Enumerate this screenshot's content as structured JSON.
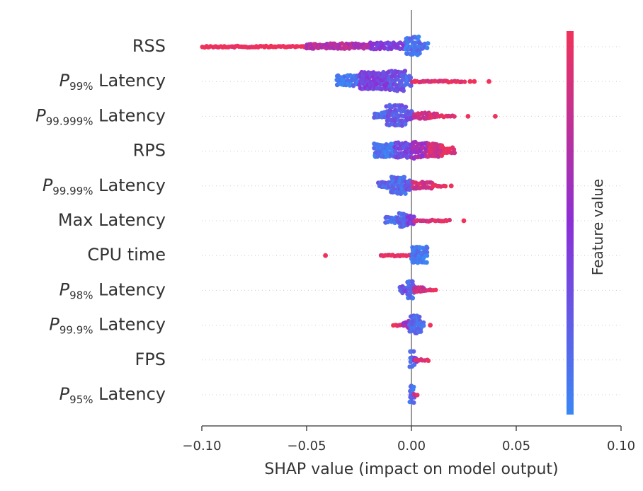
{
  "chart_data": {
    "type": "scatter",
    "subtype": "shap-beeswarm",
    "title": "",
    "xlabel": "SHAP value (impact on model output)",
    "xlim": [
      -0.1,
      0.1
    ],
    "xticks": [
      -0.1,
      -0.05,
      0.0,
      0.05,
      0.1
    ],
    "xtick_labels": [
      "−0.10",
      "−0.05",
      "0.00",
      "0.05",
      "0.10"
    ],
    "zero_line": 0.0,
    "colorbar": {
      "label": "Feature value",
      "low_color": "#3a86f5",
      "mid_color": "#8c2fd6",
      "high_color": "#f0325a",
      "low_label": "",
      "high_label": ""
    },
    "features": [
      {
        "base": "RSS",
        "sub": "",
        "suffix": "",
        "bands": [
          {
            "from": -0.1,
            "to": -0.05,
            "height": 0.8,
            "value": 1.0
          },
          {
            "from": -0.05,
            "to": -0.02,
            "height": 1.2,
            "value": 0.7
          },
          {
            "from": -0.02,
            "to": -0.003,
            "height": 1.5,
            "value": 0.45
          },
          {
            "from": -0.003,
            "to": 0.004,
            "height": 3.8,
            "value": 0.08
          },
          {
            "from": 0.004,
            "to": 0.008,
            "height": 1.5,
            "value": 0.12
          }
        ],
        "outliers": []
      },
      {
        "base": "P",
        "sub": "99%",
        "suffix": " Latency",
        "bands": [
          {
            "from": -0.036,
            "to": -0.025,
            "height": 2.4,
            "value": 0.1
          },
          {
            "from": -0.025,
            "to": -0.011,
            "height": 3.5,
            "value": 0.4
          },
          {
            "from": -0.011,
            "to": -0.003,
            "height": 4.2,
            "value": 0.3
          },
          {
            "from": -0.003,
            "to": 0.0,
            "height": 2.2,
            "value": 0.15
          },
          {
            "from": 0.0,
            "to": 0.012,
            "height": 1.0,
            "value": 0.9
          },
          {
            "from": 0.012,
            "to": 0.025,
            "height": 0.6,
            "value": 0.95
          }
        ],
        "outliers": [
          {
            "x": 0.028,
            "value": 1.0
          },
          {
            "x": 0.03,
            "value": 1.0
          },
          {
            "x": 0.037,
            "value": 1.0
          }
        ]
      },
      {
        "base": "P",
        "sub": "99.999%",
        "suffix": " Latency",
        "bands": [
          {
            "from": -0.018,
            "to": -0.012,
            "height": 1.6,
            "value": 0.15
          },
          {
            "from": -0.012,
            "to": -0.003,
            "height": 4.2,
            "value": 0.25
          },
          {
            "from": -0.003,
            "to": 0.001,
            "height": 2.0,
            "value": 0.3
          },
          {
            "from": 0.001,
            "to": 0.012,
            "height": 1.4,
            "value": 0.85
          },
          {
            "from": 0.012,
            "to": 0.02,
            "height": 0.8,
            "value": 0.95
          }
        ],
        "outliers": [
          {
            "x": 0.027,
            "value": 1.0
          },
          {
            "x": 0.04,
            "value": 1.0
          }
        ]
      },
      {
        "base": "RPS",
        "sub": "",
        "suffix": "",
        "bands": [
          {
            "from": -0.018,
            "to": -0.008,
            "height": 2.8,
            "value": 0.1
          },
          {
            "from": -0.008,
            "to": 0.0,
            "height": 3.2,
            "value": 0.35
          },
          {
            "from": 0.0,
            "to": 0.008,
            "height": 3.4,
            "value": 0.6
          },
          {
            "from": 0.008,
            "to": 0.015,
            "height": 2.8,
            "value": 0.85
          },
          {
            "from": 0.015,
            "to": 0.02,
            "height": 1.4,
            "value": 0.95
          }
        ],
        "outliers": []
      },
      {
        "base": "P",
        "sub": "99.99%",
        "suffix": " Latency",
        "bands": [
          {
            "from": -0.016,
            "to": -0.01,
            "height": 1.4,
            "value": 0.2
          },
          {
            "from": -0.01,
            "to": -0.003,
            "height": 3.6,
            "value": 0.15
          },
          {
            "from": -0.003,
            "to": 0.0,
            "height": 2.4,
            "value": 0.3
          },
          {
            "from": 0.0,
            "to": 0.01,
            "height": 1.6,
            "value": 0.85
          },
          {
            "from": 0.01,
            "to": 0.016,
            "height": 0.8,
            "value": 0.95
          }
        ],
        "outliers": [
          {
            "x": 0.019,
            "value": 1.0
          }
        ]
      },
      {
        "base": "Max Latency",
        "sub": "",
        "suffix": "",
        "bands": [
          {
            "from": -0.013,
            "to": -0.006,
            "height": 1.4,
            "value": 0.15
          },
          {
            "from": -0.006,
            "to": -0.002,
            "height": 2.8,
            "value": 0.2
          },
          {
            "from": -0.002,
            "to": 0.001,
            "height": 2.0,
            "value": 0.4
          },
          {
            "from": 0.001,
            "to": 0.008,
            "height": 1.0,
            "value": 0.85
          },
          {
            "from": 0.008,
            "to": 0.018,
            "height": 0.5,
            "value": 0.95
          }
        ],
        "outliers": [
          {
            "x": 0.025,
            "value": 1.0
          }
        ]
      },
      {
        "base": "CPU time",
        "sub": "",
        "suffix": "",
        "bands": [
          {
            "from": -0.015,
            "to": -0.004,
            "height": 0.5,
            "value": 0.95
          },
          {
            "from": -0.004,
            "to": 0.0,
            "height": 0.8,
            "value": 0.9
          },
          {
            "from": 0.0,
            "to": 0.004,
            "height": 3.8,
            "value": 0.1
          },
          {
            "from": 0.004,
            "to": 0.008,
            "height": 3.4,
            "value": 0.05
          }
        ],
        "outliers": [
          {
            "x": -0.041,
            "value": 1.0
          }
        ]
      },
      {
        "base": "P",
        "sub": "98%",
        "suffix": " Latency",
        "bands": [
          {
            "from": -0.006,
            "to": -0.002,
            "height": 1.6,
            "value": 0.3
          },
          {
            "from": -0.002,
            "to": 0.001,
            "height": 3.6,
            "value": 0.15
          },
          {
            "from": 0.001,
            "to": 0.006,
            "height": 1.2,
            "value": 0.8
          },
          {
            "from": 0.006,
            "to": 0.011,
            "height": 0.8,
            "value": 0.95
          }
        ],
        "outliers": []
      },
      {
        "base": "P",
        "sub": "99.9%",
        "suffix": " Latency",
        "bands": [
          {
            "from": -0.009,
            "to": -0.004,
            "height": 0.6,
            "value": 0.95
          },
          {
            "from": -0.004,
            "to": -0.001,
            "height": 1.6,
            "value": 0.6
          },
          {
            "from": -0.001,
            "to": 0.004,
            "height": 3.6,
            "value": 0.15
          },
          {
            "from": 0.004,
            "to": 0.006,
            "height": 1.2,
            "value": 0.1
          }
        ],
        "outliers": [
          {
            "x": 0.009,
            "value": 1.0
          }
        ]
      },
      {
        "base": "FPS",
        "sub": "",
        "suffix": "",
        "bands": [
          {
            "from": -0.001,
            "to": 0.001,
            "height": 3.4,
            "value": 0.1
          },
          {
            "from": 0.001,
            "to": 0.002,
            "height": 1.2,
            "value": 0.5
          },
          {
            "from": 0.002,
            "to": 0.008,
            "height": 0.8,
            "value": 0.95
          }
        ],
        "outliers": []
      },
      {
        "base": "P",
        "sub": "95%",
        "suffix": " Latency",
        "bands": [
          {
            "from": -0.001,
            "to": 0.001,
            "height": 3.8,
            "value": 0.15
          },
          {
            "from": 0.001,
            "to": 0.003,
            "height": 1.0,
            "value": 0.9
          }
        ],
        "outliers": []
      }
    ]
  }
}
